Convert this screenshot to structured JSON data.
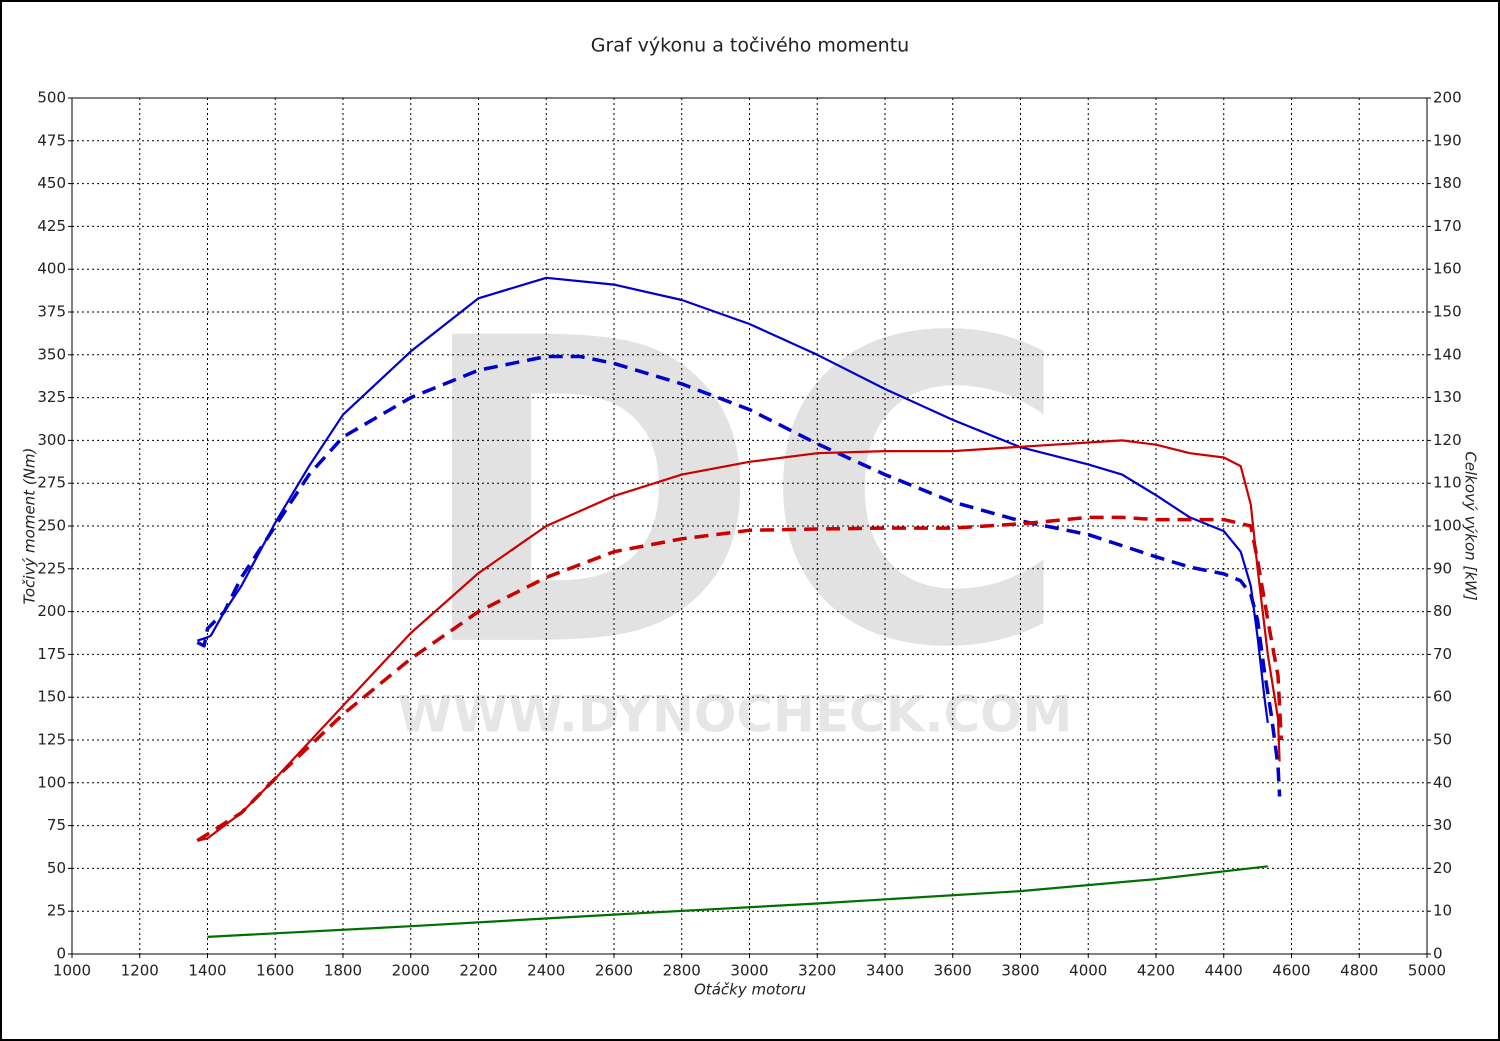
{
  "chart_data": {
    "type": "line",
    "title": "Graf výkonu a točivého momentu",
    "xlabel": "Otáčky motoru",
    "ylabel": "Točivý moment (Nm)",
    "y2label": "Celkový výkon [kW]",
    "watermark": "DC",
    "watermark_url": "WWW.DYNOCHECK.COM",
    "grid": true,
    "xlim": [
      1000,
      5000
    ],
    "xticks": [
      1000,
      1200,
      1400,
      1600,
      1800,
      2000,
      2200,
      2400,
      2600,
      2800,
      3000,
      3200,
      3400,
      3600,
      3800,
      4000,
      4200,
      4400,
      4600,
      4800,
      5000
    ],
    "ylim": [
      0,
      500
    ],
    "yticks": [
      0,
      25,
      50,
      75,
      100,
      125,
      150,
      175,
      200,
      225,
      250,
      275,
      300,
      325,
      350,
      375,
      400,
      425,
      450,
      475,
      500
    ],
    "y2lim": [
      0,
      200
    ],
    "y2ticks": [
      0,
      10,
      20,
      30,
      40,
      50,
      60,
      70,
      80,
      90,
      100,
      110,
      120,
      130,
      140,
      150,
      160,
      170,
      180,
      190,
      200
    ],
    "series": [
      {
        "color": "#0000cc",
        "dashed": false,
        "axis": "y",
        "x": [
          1370,
          1400,
          1410,
          1450,
          1500,
          1600,
          1700,
          1800,
          2000,
          2200,
          2400,
          2600,
          2800,
          3000,
          3200,
          3400,
          3600,
          3800,
          4000,
          4100,
          4200,
          4300,
          4400,
          4450,
          4480,
          4500,
          4520,
          4530
        ],
        "values": [
          183,
          185,
          186,
          200,
          215,
          252,
          285,
          315,
          352,
          383,
          395,
          391,
          382,
          368,
          350,
          330,
          312,
          296,
          286,
          280,
          268,
          255,
          247,
          235,
          215,
          185,
          150,
          135
        ]
      },
      {
        "color": "#0000cc",
        "dashed": true,
        "axis": "y",
        "x": [
          1370,
          1390,
          1400,
          1450,
          1500,
          1600,
          1700,
          1800,
          2000,
          2200,
          2400,
          2500,
          2600,
          2800,
          3000,
          3200,
          3400,
          3600,
          3800,
          4000,
          4200,
          4300,
          4400,
          4450,
          4480,
          4500,
          4520,
          4540,
          4560,
          4565
        ],
        "values": [
          182,
          180,
          190,
          200,
          220,
          250,
          280,
          302,
          325,
          341,
          349,
          349,
          345,
          333,
          318,
          298,
          280,
          264,
          253,
          245,
          232,
          226,
          222,
          218,
          210,
          195,
          165,
          140,
          110,
          92
        ]
      },
      {
        "color": "#cc0000",
        "dashed": false,
        "axis": "y2",
        "x": [
          1370,
          1400,
          1500,
          1600,
          1800,
          2000,
          2200,
          2400,
          2600,
          2800,
          3000,
          3200,
          3400,
          3600,
          3800,
          4000,
          4100,
          4200,
          4300,
          4400,
          4450,
          4480,
          4500,
          4530,
          4560,
          4565
        ],
        "values": [
          26.5,
          27,
          33,
          41,
          58,
          75,
          89,
          100,
          107,
          112,
          115,
          117,
          117.5,
          117.5,
          118.5,
          119.5,
          120,
          119,
          117,
          116,
          114,
          105,
          90,
          70,
          55,
          45
        ]
      },
      {
        "color": "#cc0000",
        "dashed": true,
        "axis": "y2",
        "x": [
          1370,
          1400,
          1500,
          1600,
          1800,
          2000,
          2200,
          2400,
          2600,
          2800,
          3000,
          3200,
          3400,
          3600,
          3800,
          4000,
          4100,
          4200,
          4300,
          4400,
          4480,
          4500,
          4530,
          4560,
          4570
        ],
        "values": [
          26.5,
          28,
          33,
          41,
          56,
          69,
          80,
          88,
          94,
          97,
          99,
          99.3,
          99.5,
          99.5,
          100.5,
          102,
          102,
          101.5,
          101.5,
          101.5,
          100,
          92,
          78,
          65,
          50
        ]
      },
      {
        "color": "#007000",
        "dashed": false,
        "axis": "y2",
        "x": [
          1400,
          2000,
          2600,
          3200,
          3800,
          4200,
          4530
        ],
        "values": [
          4,
          6.5,
          9.2,
          11.8,
          14.7,
          17.5,
          20.5
        ]
      }
    ]
  }
}
